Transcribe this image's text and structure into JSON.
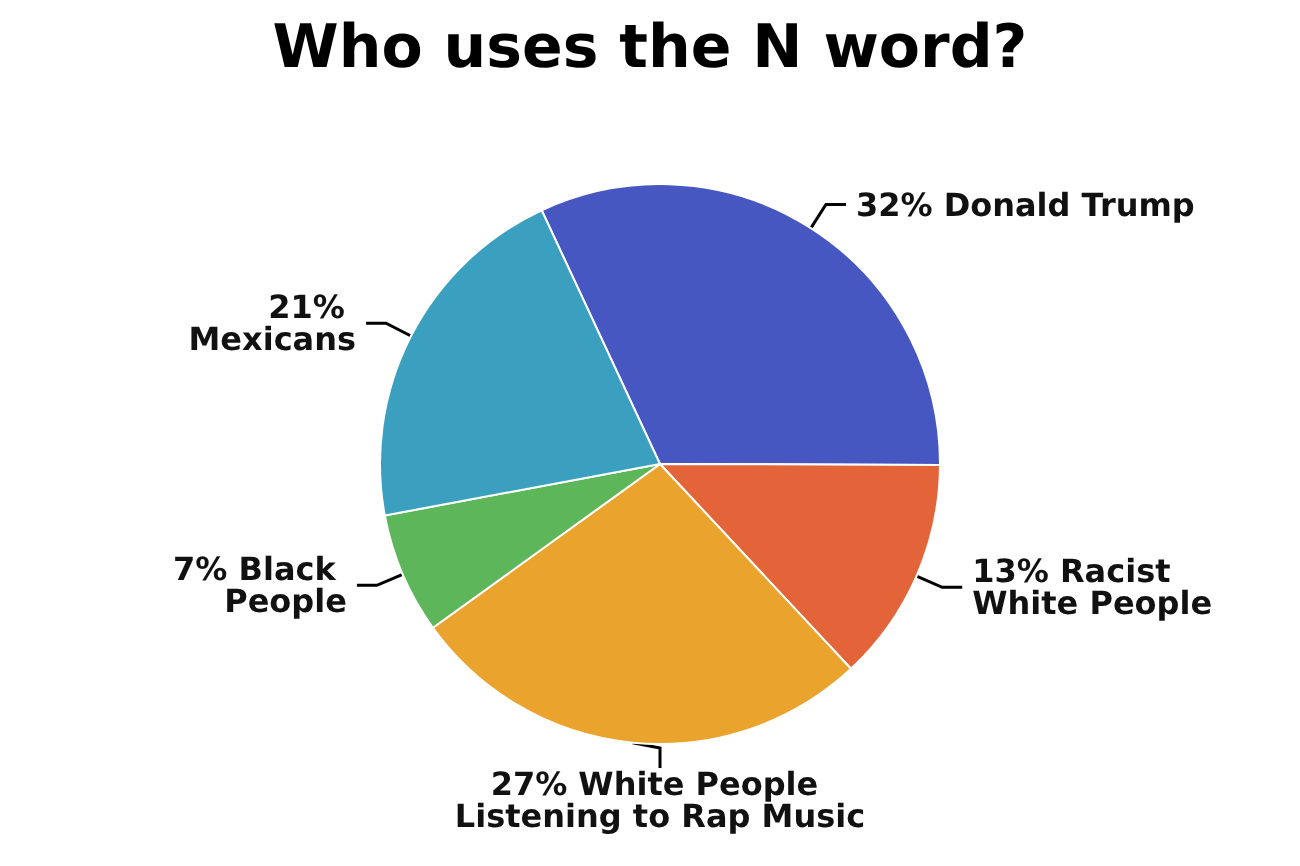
{
  "chart_data": {
    "type": "pie",
    "title": "Who uses the N word?",
    "categories": [
      "Donald Trump",
      "Racist White People",
      "White People Listening to Rap Music",
      "Black People",
      "Mexicans"
    ],
    "values": [
      32,
      13,
      27,
      7,
      21
    ],
    "colors": [
      "#4657c2",
      "#e4643a",
      "#eaa32c",
      "#5db65a",
      "#3b9fc0"
    ],
    "value_labels": [
      "32%",
      "13%",
      "27%",
      "7%",
      "21%"
    ],
    "legend": false
  }
}
